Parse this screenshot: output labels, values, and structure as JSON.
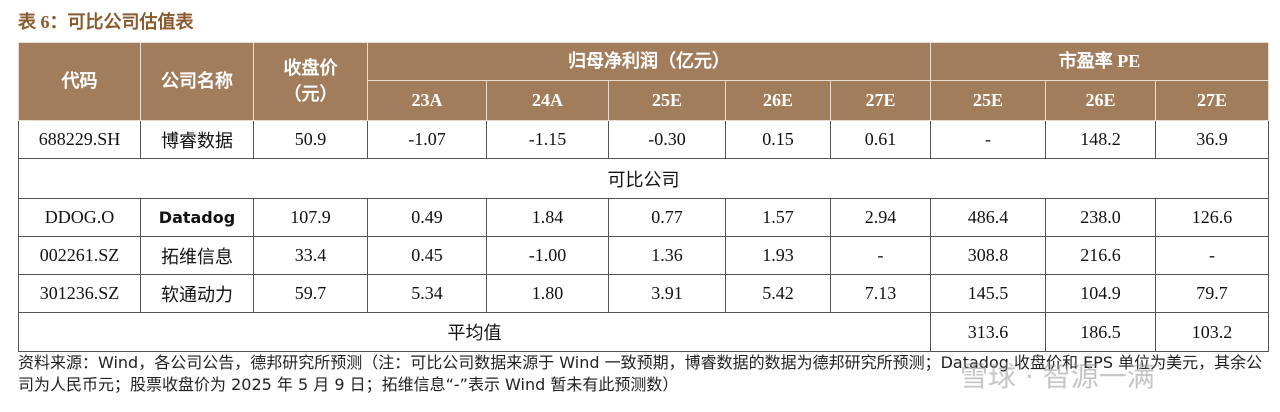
{
  "title": "表 6：可比公司估值表",
  "table": {
    "header": {
      "code": "代码",
      "name": "公司名称",
      "price": "收盘价\n（元）",
      "profit_group": "归母净利润（亿元）",
      "pe_group": "市盈率 PE",
      "profit_years": [
        "23A",
        "24A",
        "25E",
        "26E",
        "27E"
      ],
      "pe_years": [
        "25E",
        "26E",
        "27E"
      ]
    },
    "target_row": [
      "688229.SH",
      "博睿数据",
      "50.9",
      "-1.07",
      "-1.15",
      "-0.30",
      "0.15",
      "0.61",
      "-",
      "148.2",
      "36.9"
    ],
    "section": "可比公司",
    "peer_rows": [
      [
        "DDOG.O",
        "Datadog",
        "107.9",
        "0.49",
        "1.84",
        "0.77",
        "1.57",
        "2.94",
        "486.4",
        "238.0",
        "126.6"
      ],
      [
        "002261.SZ",
        "拓维信息",
        "33.4",
        "0.45",
        "-1.00",
        "1.36",
        "1.93",
        "-",
        "308.8",
        "216.6",
        "-"
      ],
      [
        "301236.SZ",
        "软通动力",
        "59.7",
        "5.34",
        "1.80",
        "3.91",
        "5.42",
        "7.13",
        "145.5",
        "104.9",
        "79.7"
      ]
    ],
    "average": {
      "label": "平均值",
      "values": [
        "313.6",
        "186.5",
        "103.2"
      ]
    }
  },
  "note": "资料来源：Wind，各公司公告，德邦研究所预测（注：可比公司数据来源于 Wind 一致预期，博睿数据的数据为德邦研究所预测；Datadog 收盘价和 EPS 单位为美元，其余公司为人民币元；股票收盘价为 2025 年 5 月 9 日；拓维信息“-”表示 Wind 暂未有此预测数）",
  "watermark": "雪球 · 智源一满"
}
